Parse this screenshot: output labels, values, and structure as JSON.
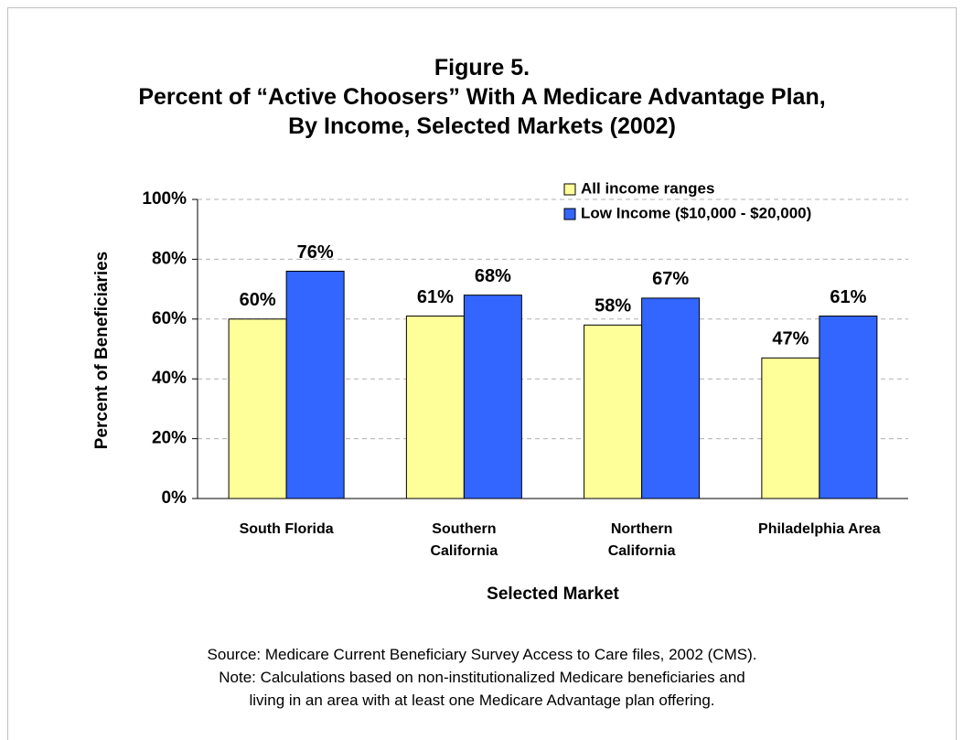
{
  "chart_data": {
    "type": "bar",
    "title": "Figure 5.\nPercent of  “Active Choosers” With A Medicare Advantage Plan,\nBy Income, Selected Markets (2002)",
    "categories": [
      "South Florida",
      "Southern\nCalifornia",
      "Northern\nCalifornia",
      "Philadelphia Area"
    ],
    "series": [
      {
        "name": "All income ranges",
        "color": "#ffff99",
        "values": [
          60,
          61,
          58,
          47
        ],
        "value_labels": [
          "60%",
          "61%",
          "58%",
          "47%"
        ]
      },
      {
        "name": "Low Income ($10,000 - $20,000)",
        "color": "#3366ff",
        "values": [
          76,
          68,
          67,
          61
        ],
        "value_labels": [
          "76%",
          "68%",
          "67%",
          "61%"
        ]
      }
    ],
    "ylim": [
      0,
      100
    ],
    "yticks": [
      {
        "value": 0,
        "label": "0%"
      },
      {
        "value": 20,
        "label": "20%"
      },
      {
        "value": 40,
        "label": "40%"
      },
      {
        "value": 60,
        "label": "60%"
      },
      {
        "value": 80,
        "label": "80%"
      },
      {
        "value": 100,
        "label": "100%"
      }
    ],
    "grid": true,
    "y_label": "Percent of Beneficiaries",
    "x_label": "Selected Market",
    "legend": "top-right",
    "source": "Source: Medicare Current Beneficiary Survey Access to Care files, 2002 (CMS).\nNote: Calculations based on non-institutionalized Medicare beneficiaries and\nliving in an area with at least one Medicare Advantage plan offering."
  }
}
